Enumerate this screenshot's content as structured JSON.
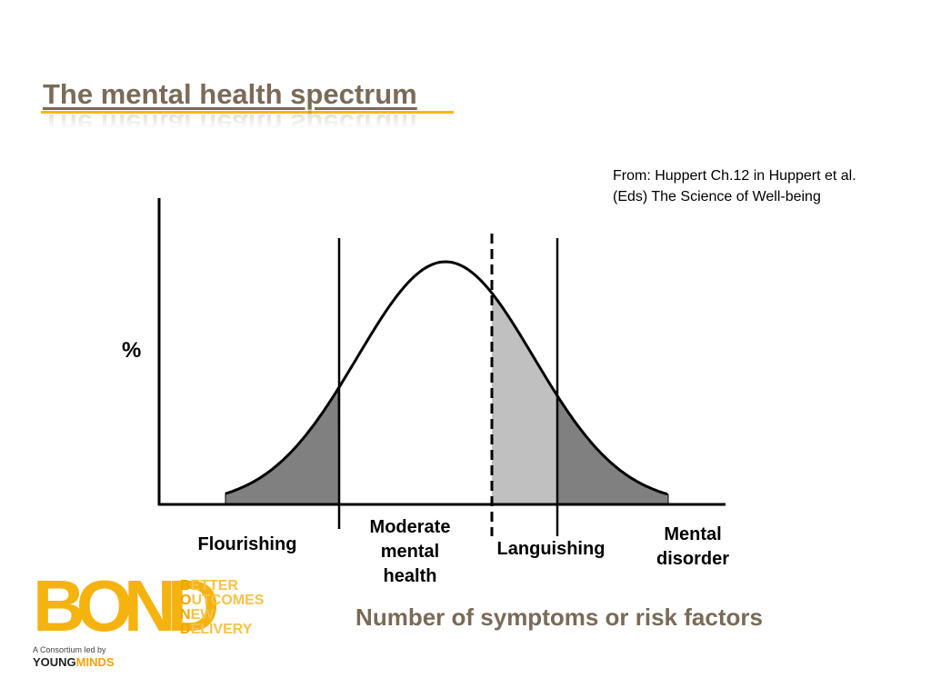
{
  "slide": {
    "title": "The mental health spectrum",
    "source_line1": "From: Huppert Ch.12 in Huppert et al.",
    "source_line2": "(Eds) The Science of Well-being"
  },
  "diagram": {
    "y_axis_label": "%",
    "x_axis_title": "Number of symptoms or risk factors",
    "regions": [
      {
        "lines": [
          "Flourishing"
        ]
      },
      {
        "lines": [
          "Moderate",
          "mental",
          "health"
        ]
      },
      {
        "lines": [
          "Languishing"
        ]
      },
      {
        "lines": [
          "Mental",
          "disorder"
        ]
      }
    ],
    "colors": {
      "curve": "#000000",
      "tail_fill": "#808080",
      "languishing_fill": "#c0c0c0"
    }
  },
  "logo": {
    "mark": "BOND",
    "words": [
      {
        "cap": "B",
        "rest": "ETTER"
      },
      {
        "cap": "O",
        "rest": "UTCOMES"
      },
      {
        "cap": "N",
        "rest": "EW"
      },
      {
        "cap": "D",
        "rest": "ELIVERY"
      }
    ],
    "consortium": "A Consortium led by",
    "young": "YOUNG",
    "minds": "MINDS",
    "colors": {
      "primary": "#f2a500",
      "light": "#f6c34a"
    }
  }
}
